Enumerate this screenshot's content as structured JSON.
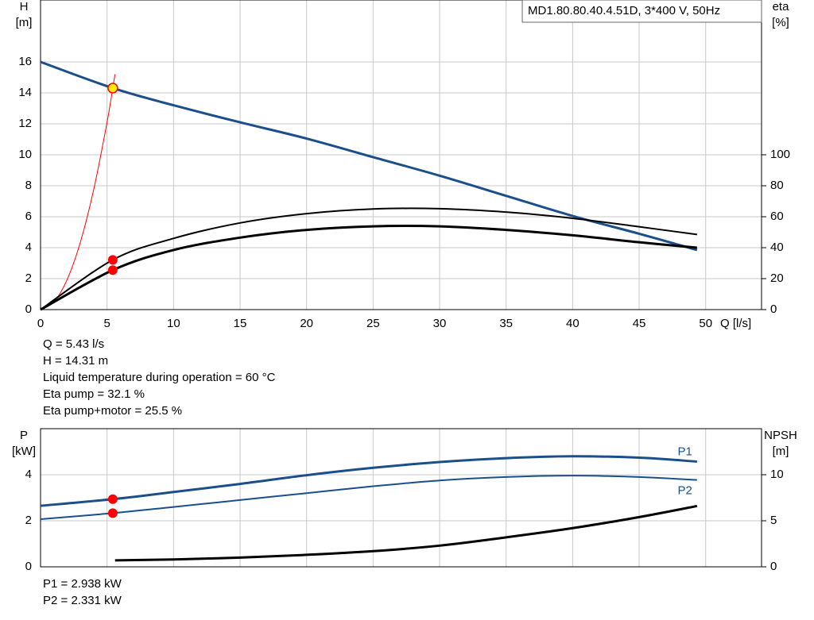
{
  "chart_data": [
    {
      "type": "line",
      "ylabel": "H",
      "yunit": "[m]",
      "y2label": "eta",
      "y2unit": "[%]",
      "xlabel": "Q [l/s]",
      "legend_box": "MD1.80.80.40.4.51D, 3*400 V, 50Hz",
      "duty_q": 5.43,
      "xlim": [
        0,
        54.2
      ],
      "xticks": [
        0,
        5,
        10,
        15,
        20,
        25,
        30,
        35,
        40,
        45,
        50
      ],
      "xtick_labels": true,
      "ylim": [
        0,
        20
      ],
      "yticks": [
        0,
        2,
        4,
        6,
        8,
        10,
        12,
        14,
        16
      ],
      "y2lim": [
        0,
        200
      ],
      "y2ticks": [
        0,
        20,
        40,
        60,
        80,
        100
      ],
      "grid": true,
      "series": [
        {
          "color": "#ff0000",
          "width": 1,
          "x": [
            0,
            1,
            2,
            3,
            4,
            5,
            5.43,
            5.6
          ],
          "values": [
            0,
            0.49,
            1.94,
            4.37,
            7.77,
            12.1,
            14.31,
            15.2
          ]
        },
        {
          "color": "#1a4f8b",
          "width": 3,
          "point_color": "#ffee00",
          "x": [
            0,
            5.43,
            10,
            15,
            20,
            25,
            30,
            35,
            40,
            45,
            49.35
          ],
          "values": [
            16,
            14.31,
            13.2,
            12.1,
            11.05,
            9.85,
            8.65,
            7.35,
            6.05,
            4.9,
            3.85
          ]
        },
        {
          "color": "#000000",
          "width": 2,
          "axis": "y2",
          "point_color": "#ff0000",
          "x": [
            0,
            5.43,
            10,
            15,
            20,
            25,
            30,
            35,
            40,
            45,
            49.35
          ],
          "values": [
            0,
            32.1,
            46,
            56,
            62,
            65,
            65.2,
            63,
            59,
            53.5,
            48.5
          ]
        },
        {
          "color": "#000000",
          "width": 3,
          "axis": "y2",
          "point_color": "#ff0000",
          "x": [
            0,
            5.43,
            10,
            15,
            20,
            25,
            30,
            35,
            40,
            45,
            49.35
          ],
          "values": [
            0,
            25.5,
            38.5,
            46.5,
            51.5,
            53.8,
            53.8,
            51.5,
            48,
            43.5,
            40
          ]
        }
      ],
      "notes": [
        "Q = 5.43 l/s",
        "H = 14.31 m",
        "Liquid temperature during operation = 60 °C",
        "Eta pump = 32.1 %",
        "Eta pump+motor = 25.5 %"
      ]
    },
    {
      "type": "line",
      "ylabel": "P",
      "yunit": "[kW]",
      "y2label": "NPSH",
      "y2unit": "[m]",
      "duty_q": 5.43,
      "xlim": [
        0,
        54.2
      ],
      "xticks": [
        0,
        5,
        10,
        15,
        20,
        25,
        30,
        35,
        40,
        45,
        50
      ],
      "xtick_labels": false,
      "ylim": [
        0,
        6
      ],
      "yticks": [
        0,
        2,
        4
      ],
      "y2lim": [
        0,
        15
      ],
      "y2ticks": [
        0,
        5,
        10
      ],
      "grid": true,
      "series": [
        {
          "name": "P1",
          "color": "#1a4f8b",
          "width": 3,
          "point_color": "#ff0000",
          "x": [
            0,
            5.43,
            10,
            15,
            20,
            25,
            30,
            35,
            40,
            45,
            49.35
          ],
          "values": [
            2.65,
            2.938,
            3.25,
            3.6,
            3.98,
            4.3,
            4.55,
            4.72,
            4.8,
            4.74,
            4.57
          ]
        },
        {
          "name": "P2",
          "color": "#1a4f8b",
          "width": 2,
          "point_color": "#ff0000",
          "x": [
            0,
            5.43,
            10,
            15,
            20,
            25,
            30,
            35,
            40,
            45,
            49.35
          ],
          "values": [
            2.07,
            2.331,
            2.6,
            2.9,
            3.2,
            3.5,
            3.75,
            3.9,
            3.96,
            3.9,
            3.77
          ]
        },
        {
          "color": "#000000",
          "width": 3,
          "axis": "y2",
          "x": [
            5.6,
            10,
            15,
            20,
            25,
            30,
            35,
            40,
            45,
            49.35
          ],
          "values": [
            0.7,
            0.8,
            1.0,
            1.3,
            1.7,
            2.3,
            3.2,
            4.2,
            5.4,
            6.6
          ]
        }
      ],
      "notes": [
        "P1 = 2.938 kW",
        "P2 = 2.331 kW"
      ]
    }
  ]
}
